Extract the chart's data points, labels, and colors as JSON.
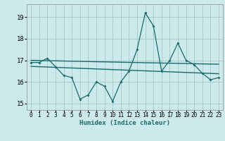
{
  "x": [
    0,
    1,
    2,
    3,
    4,
    5,
    6,
    7,
    8,
    9,
    10,
    11,
    12,
    13,
    14,
    15,
    16,
    17,
    18,
    19,
    20,
    21,
    22,
    23
  ],
  "y_main": [
    16.9,
    16.9,
    17.1,
    16.7,
    16.3,
    16.2,
    15.2,
    15.4,
    16.0,
    15.8,
    15.1,
    16.0,
    16.5,
    17.5,
    19.2,
    18.6,
    16.5,
    17.0,
    17.8,
    17.0,
    16.8,
    16.4,
    16.1,
    16.2
  ],
  "trend1_x": [
    0,
    23
  ],
  "trend1_y": [
    17.0,
    16.82
  ],
  "trend2_x": [
    0,
    23
  ],
  "trend2_y": [
    16.72,
    16.38
  ],
  "bg_color": "#cce9ec",
  "grid_color": "#aacccc",
  "line_color": "#1a6b6b",
  "trend_color": "#1a6b6b",
  "xlabel": "Humidex (Indice chaleur)",
  "ylim": [
    14.7,
    19.6
  ],
  "xlim": [
    -0.5,
    23.5
  ],
  "yticks": [
    15,
    16,
    17,
    18,
    19
  ],
  "xticks": [
    0,
    1,
    2,
    3,
    4,
    5,
    6,
    7,
    8,
    9,
    10,
    11,
    12,
    13,
    14,
    15,
    16,
    17,
    18,
    19,
    20,
    21,
    22,
    23
  ],
  "xtick_labels": [
    "0",
    "1",
    "2",
    "3",
    "4",
    "5",
    "6",
    "7",
    "8",
    "9",
    "10",
    "11",
    "12",
    "13",
    "14",
    "15",
    "16",
    "17",
    "18",
    "19",
    "20",
    "21",
    "22",
    "23"
  ]
}
